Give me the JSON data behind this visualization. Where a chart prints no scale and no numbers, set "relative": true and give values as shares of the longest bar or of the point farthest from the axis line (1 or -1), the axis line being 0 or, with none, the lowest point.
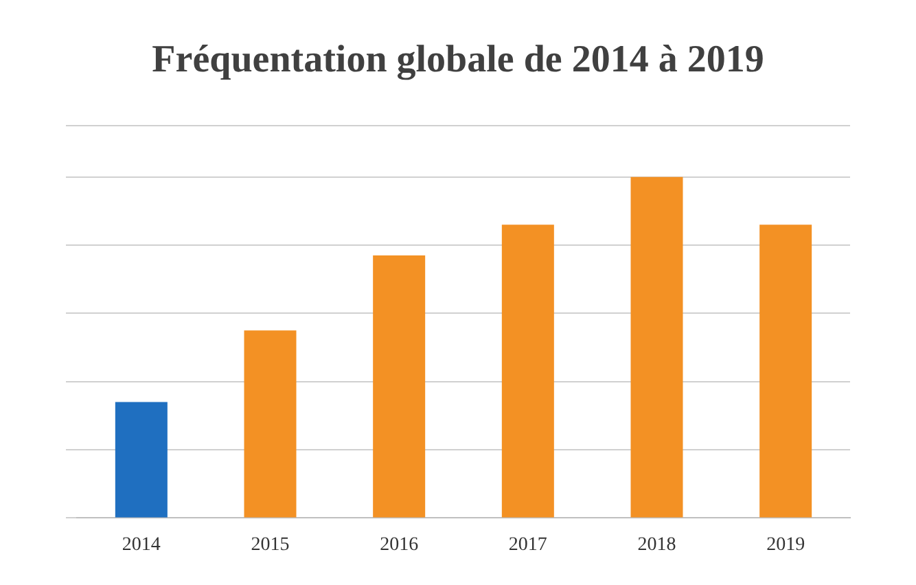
{
  "chart_data": {
    "type": "bar",
    "title": "Fréquentation globale de 2014 à 2019",
    "categories": [
      "2014",
      "2015",
      "2016",
      "2017",
      "2018",
      "2019"
    ],
    "values": [
      0.34,
      0.55,
      0.77,
      0.86,
      1,
      0.86
    ],
    "colors": [
      "#1f6fc0",
      "#f39124",
      "#f39124",
      "#f39124",
      "#f39124",
      "#f39124"
    ],
    "relative": true,
    "grid": "y",
    "legend": false
  }
}
